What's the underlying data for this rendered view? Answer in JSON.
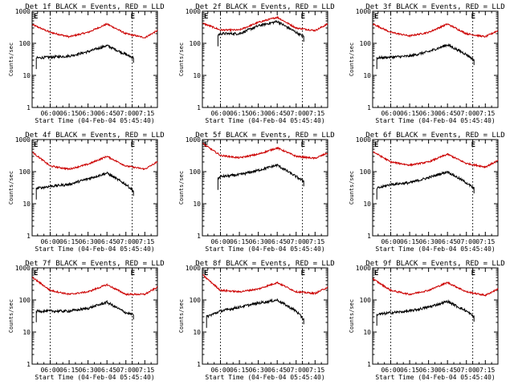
{
  "figure": {
    "chart_data": [
      {
        "type": "line",
        "title": "Det 1f BLACK = Events, RED = LLD",
        "xlabel": "Start Time (04-Feb-04 05:45:40)",
        "ylabel": "Counts/sec",
        "y_scale": "log",
        "ylim": [
          1,
          1000
        ],
        "xlim": [
          "05:45:40",
          "07:25"
        ],
        "x_tick_labels": [
          "06:00",
          "06:15",
          "06:30",
          "06:45",
          "07:00",
          "07:15"
        ],
        "y_tick_labels": [
          "1",
          "10",
          "100",
          "1000"
        ],
        "markers": {
          "left": "E",
          "right": "E"
        },
        "marker_lines": [
          "06:00",
          "07:05"
        ],
        "series": [
          {
            "color": "#cc0000",
            "x": [
              "05:46",
              "06:00",
              "06:15",
              "06:30",
              "06:45",
              "07:00",
              "07:15",
              "07:25"
            ],
            "y": [
              380,
              220,
              160,
              220,
              400,
              200,
              150,
              250
            ]
          },
          {
            "color": "#000000",
            "x": [
              "05:49",
              "06:00",
              "06:15",
              "06:30",
              "06:45",
              "07:00",
              "07:06"
            ],
            "y": [
              35,
              37,
              40,
              55,
              85,
              45,
              35
            ]
          }
        ]
      },
      {
        "type": "line",
        "title": "Det 2f BLACK = Events, RED = LLD",
        "xlabel": "Start Time (04-Feb-04 05:45:40)",
        "ylabel": "Counts/sec",
        "y_scale": "log",
        "ylim": [
          1,
          1000
        ],
        "xlim": [
          "05:45:40",
          "07:25"
        ],
        "x_tick_labels": [
          "06:00",
          "06:15",
          "06:30",
          "06:45",
          "07:00",
          "07:15"
        ],
        "y_tick_labels": [
          "1",
          "10",
          "100",
          "1000"
        ],
        "markers": {
          "left": "E",
          "right": "E"
        },
        "marker_lines": [
          "06:00",
          "07:05"
        ],
        "series": [
          {
            "color": "#cc0000",
            "x": [
              "05:46",
              "06:00",
              "06:15",
              "06:30",
              "06:45",
              "07:00",
              "07:15",
              "07:25"
            ],
            "y": [
              420,
              260,
              260,
              450,
              650,
              300,
              250,
              400
            ]
          },
          {
            "color": "#000000",
            "x": [
              "05:58",
              "06:00",
              "06:15",
              "06:30",
              "06:45",
              "07:00",
              "07:06"
            ],
            "y": [
              180,
              200,
              200,
              350,
              480,
              220,
              160
            ]
          }
        ]
      },
      {
        "type": "line",
        "title": "Det 3f BLACK = Events, RED = LLD",
        "xlabel": "Start Time (04-Feb-04 05:45:40)",
        "ylabel": "Counts/sec",
        "y_scale": "log",
        "ylim": [
          1,
          1000
        ],
        "xlim": [
          "05:45:40",
          "07:25"
        ],
        "x_tick_labels": [
          "06:00",
          "06:15",
          "06:30",
          "06:45",
          "07:00",
          "07:15"
        ],
        "y_tick_labels": [
          "1",
          "10",
          "100",
          "1000"
        ],
        "markers": {
          "left": "E",
          "right": "E"
        },
        "marker_lines": [
          "06:00",
          "07:05"
        ],
        "series": [
          {
            "color": "#cc0000",
            "x": [
              "05:46",
              "06:00",
              "06:15",
              "06:30",
              "06:45",
              "07:00",
              "07:15",
              "07:25"
            ],
            "y": [
              400,
              220,
              170,
              220,
              400,
              200,
              160,
              250
            ]
          },
          {
            "color": "#000000",
            "x": [
              "05:49",
              "06:00",
              "06:15",
              "06:30",
              "06:45",
              "07:00",
              "07:06"
            ],
            "y": [
              35,
              37,
              40,
              55,
              90,
              45,
              30
            ]
          }
        ]
      },
      {
        "type": "line",
        "title": "Det 4f BLACK = Events, RED = LLD",
        "xlabel": "Start Time (04-Feb-04 05:45:40)",
        "ylabel": "Counts/sec",
        "y_scale": "log",
        "ylim": [
          1,
          1000
        ],
        "xlim": [
          "05:45:40",
          "07:25"
        ],
        "x_tick_labels": [
          "06:00",
          "06:15",
          "06:30",
          "06:45",
          "07:00",
          "07:15"
        ],
        "y_tick_labels": [
          "1",
          "10",
          "100",
          "1000"
        ],
        "markers": {
          "left": "E",
          "right": "E"
        },
        "marker_lines": [
          "06:00",
          "07:05"
        ],
        "series": [
          {
            "color": "#cc0000",
            "x": [
              "05:46",
              "06:00",
              "06:15",
              "06:30",
              "06:45",
              "07:00",
              "07:15",
              "07:25"
            ],
            "y": [
              400,
              150,
              120,
              170,
              300,
              150,
              120,
              200
            ]
          },
          {
            "color": "#000000",
            "x": [
              "05:49",
              "06:00",
              "06:15",
              "06:30",
              "06:45",
              "07:00",
              "07:06"
            ],
            "y": [
              30,
              35,
              40,
              60,
              90,
              40,
              25
            ]
          }
        ]
      },
      {
        "type": "line",
        "title": "Det 5f BLACK = Events, RED = LLD",
        "xlabel": "Start Time (04-Feb-04 05:45:40)",
        "ylabel": "Counts/sec",
        "y_scale": "log",
        "ylim": [
          1,
          1000
        ],
        "xlim": [
          "05:45:40",
          "07:25"
        ],
        "x_tick_labels": [
          "06:00",
          "06:15",
          "06:30",
          "06:45",
          "07:00",
          "07:15"
        ],
        "y_tick_labels": [
          "1",
          "10",
          "100",
          "1000"
        ],
        "markers": {
          "left": "E",
          "right": "E"
        },
        "marker_lines": [
          "06:00",
          "07:05"
        ],
        "series": [
          {
            "color": "#cc0000",
            "x": [
              "05:46",
              "06:00",
              "06:15",
              "06:30",
              "06:45",
              "07:00",
              "07:15",
              "07:25"
            ],
            "y": [
              750,
              320,
              270,
              350,
              550,
              300,
              260,
              380
            ]
          },
          {
            "color": "#000000",
            "x": [
              "05:58",
              "06:00",
              "06:15",
              "06:30",
              "06:45",
              "07:00",
              "07:06"
            ],
            "y": [
              60,
              70,
              80,
              110,
              160,
              70,
              50
            ]
          }
        ]
      },
      {
        "type": "line",
        "title": "Det 6f BLACK = Events, RED = LLD",
        "xlabel": "Start Time (04-Feb-04 05:45:40)",
        "ylabel": "Counts/sec",
        "y_scale": "log",
        "ylim": [
          1,
          1000
        ],
        "xlim": [
          "05:45:40",
          "07:25"
        ],
        "x_tick_labels": [
          "06:00",
          "06:15",
          "06:30",
          "06:45",
          "07:00",
          "07:15"
        ],
        "y_tick_labels": [
          "1",
          "10",
          "100",
          "1000"
        ],
        "markers": {
          "left": "E",
          "right": "E"
        },
        "marker_lines": [
          "06:00",
          "07:05"
        ],
        "series": [
          {
            "color": "#cc0000",
            "x": [
              "05:46",
              "06:00",
              "06:15",
              "06:30",
              "06:45",
              "07:00",
              "07:15",
              "07:25"
            ],
            "y": [
              420,
              200,
              160,
              200,
              350,
              180,
              140,
              220
            ]
          },
          {
            "color": "#000000",
            "x": [
              "05:49",
              "06:00",
              "06:15",
              "06:30",
              "06:45",
              "07:00",
              "07:06"
            ],
            "y": [
              30,
              40,
              45,
              65,
              100,
              45,
              30
            ]
          }
        ]
      },
      {
        "type": "line",
        "title": "Det 7f BLACK = Events, RED = LLD",
        "xlabel": "Start Time (04-Feb-04 05:45:40)",
        "ylabel": "Counts/sec",
        "y_scale": "log",
        "ylim": [
          1,
          1000
        ],
        "xlim": [
          "05:45:40",
          "07:25"
        ],
        "x_tick_labels": [
          "06:00",
          "06:15",
          "06:30",
          "06:45",
          "07:00",
          "07:15"
        ],
        "y_tick_labels": [
          "1",
          "10",
          "100",
          "1000"
        ],
        "markers": {
          "left": "E",
          "right": "E"
        },
        "marker_lines": [
          "06:00",
          "07:05"
        ],
        "series": [
          {
            "color": "#cc0000",
            "x": [
              "05:46",
              "06:00",
              "06:15",
              "06:30",
              "06:45",
              "07:00",
              "07:15",
              "07:25"
            ],
            "y": [
              500,
              200,
              150,
              180,
              300,
              150,
              150,
              250
            ]
          },
          {
            "color": "#000000",
            "x": [
              "05:49",
              "06:00",
              "06:15",
              "06:30",
              "06:45",
              "07:00",
              "07:06"
            ],
            "y": [
              45,
              45,
              45,
              55,
              85,
              40,
              35
            ]
          }
        ]
      },
      {
        "type": "line",
        "title": "Det 8f BLACK = Events, RED = LLD",
        "xlabel": "Start Time (04-Feb-04 05:45:40)",
        "ylabel": "Counts/sec",
        "y_scale": "log",
        "ylim": [
          1,
          1000
        ],
        "xlim": [
          "05:45:40",
          "07:25"
        ],
        "x_tick_labels": [
          "06:00",
          "06:15",
          "06:30",
          "06:45",
          "07:00",
          "07:15"
        ],
        "y_tick_labels": [
          "1",
          "10",
          "100",
          "1000"
        ],
        "markers": {
          "left": "E",
          "right": "E"
        },
        "marker_lines": [
          "06:00",
          "07:05"
        ],
        "series": [
          {
            "color": "#cc0000",
            "x": [
              "05:46",
              "06:00",
              "06:15",
              "06:30",
              "06:45",
              "07:00",
              "07:15",
              "07:25"
            ],
            "y": [
              600,
              200,
              180,
              220,
              350,
              180,
              160,
              250
            ]
          },
          {
            "color": "#000000",
            "x": [
              "05:49",
              "06:00",
              "06:15",
              "06:30",
              "06:45",
              "07:00",
              "07:06"
            ],
            "y": [
              30,
              45,
              60,
              80,
              100,
              45,
              25
            ]
          }
        ]
      },
      {
        "type": "line",
        "title": "Det 9f BLACK = Events, RED = LLD",
        "xlabel": "Start Time (04-Feb-04 05:45:40)",
        "ylabel": "Counts/sec",
        "y_scale": "log",
        "ylim": [
          1,
          1000
        ],
        "xlim": [
          "05:45:40",
          "07:25"
        ],
        "x_tick_labels": [
          "06:00",
          "06:15",
          "06:30",
          "06:45",
          "07:00",
          "07:15"
        ],
        "y_tick_labels": [
          "1",
          "10",
          "100",
          "1000"
        ],
        "markers": {
          "left": "E",
          "right": "E"
        },
        "marker_lines": [
          "06:00",
          "07:05"
        ],
        "series": [
          {
            "color": "#cc0000",
            "x": [
              "05:46",
              "06:00",
              "06:15",
              "06:30",
              "06:45",
              "07:00",
              "07:15",
              "07:25"
            ],
            "y": [
              450,
              200,
              150,
              200,
              350,
              180,
              140,
              220
            ]
          },
          {
            "color": "#000000",
            "x": [
              "05:49",
              "06:00",
              "06:15",
              "06:30",
              "06:45",
              "07:00",
              "07:06"
            ],
            "y": [
              35,
              40,
              45,
              60,
              90,
              45,
              30
            ]
          }
        ]
      }
    ]
  }
}
